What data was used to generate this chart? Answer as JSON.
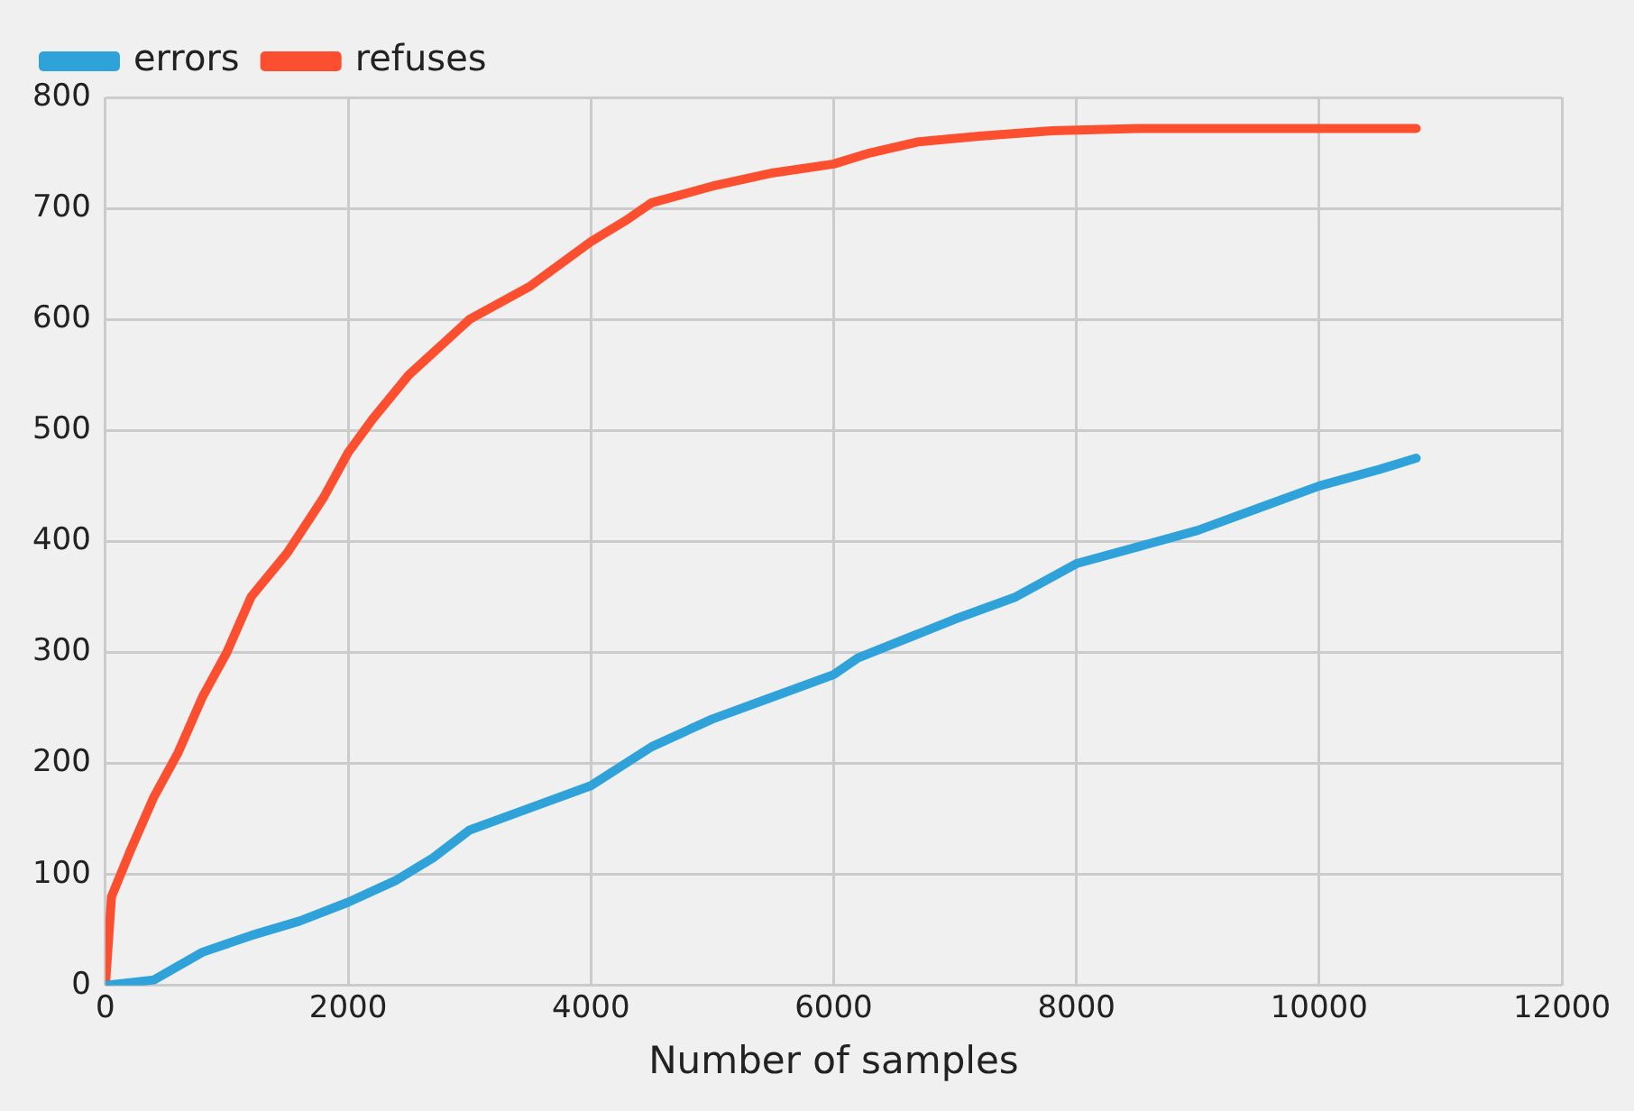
{
  "chart_data": {
    "type": "line",
    "xlabel": "Number of samples",
    "xlim": [
      0,
      12000
    ],
    "xticks": [
      0,
      2000,
      4000,
      6000,
      8000,
      10000,
      12000
    ],
    "ylim": [
      0,
      800
    ],
    "yticks": [
      0,
      100,
      200,
      300,
      400,
      500,
      600,
      700,
      800
    ],
    "grid": true,
    "legend": "top left",
    "marker": "none",
    "line_style": "solid",
    "series": [
      {
        "name": "errors",
        "color": "#30a2da",
        "x": [
          0,
          400,
          800,
          1200,
          1600,
          2000,
          2400,
          2700,
          3000,
          3500,
          4000,
          4500,
          5000,
          5500,
          6000,
          6200,
          7000,
          7500,
          8000,
          8500,
          9000,
          9500,
          10000,
          10500,
          10800
        ],
        "values": [
          0,
          5,
          30,
          45,
          58,
          75,
          95,
          115,
          140,
          160,
          180,
          215,
          240,
          260,
          280,
          295,
          330,
          350,
          380,
          395,
          410,
          430,
          450,
          465,
          475
        ]
      },
      {
        "name": "refuses",
        "color": "#fc4f30",
        "x": [
          0,
          50,
          200,
          400,
          600,
          800,
          1000,
          1200,
          1500,
          1800,
          2000,
          2200,
          2500,
          2800,
          3000,
          3500,
          4000,
          4300,
          4500,
          5000,
          5500,
          6000,
          6300,
          6700,
          7200,
          7800,
          8500,
          9500,
          10800
        ],
        "values": [
          0,
          80,
          120,
          170,
          210,
          260,
          300,
          350,
          390,
          440,
          480,
          510,
          550,
          580,
          600,
          630,
          670,
          690,
          705,
          720,
          732,
          740,
          750,
          760,
          765,
          770,
          772,
          772,
          772
        ]
      }
    ]
  }
}
